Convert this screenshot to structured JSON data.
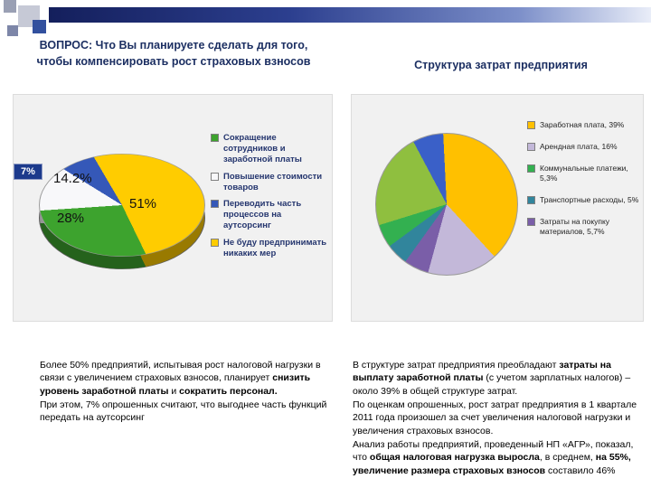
{
  "chart_data": [
    {
      "type": "pie",
      "style": "3d",
      "title": "ВОПРОС: Что Вы планируете сделать для того, чтобы компенсировать рост страховых взносов",
      "legend_position": "right",
      "start_angle": -20,
      "slices": [
        {
          "label": "Не буду предпринимать никаких мер",
          "value": 51,
          "display": "51%",
          "color": "#FFCC00"
        },
        {
          "label": "Сокращение сотрудников и заработной платы",
          "value": 28,
          "display": "28%",
          "color": "#3DA32E"
        },
        {
          "label": "Повышение стоимости товаров",
          "value": 14.2,
          "display": "14.2%",
          "color": "#F8F8FA"
        },
        {
          "label": "Переводить часть процессов на аутсорсинг",
          "value": 7,
          "display": "7%",
          "color": "#3558B8"
        }
      ],
      "legend": [
        {
          "label": "Сокращение сотрудников и заработной платы",
          "color": "#3DA32E"
        },
        {
          "label": "Повышение стоимости товаров",
          "color": "#F8F8FA"
        },
        {
          "label": "Переводить часть процессов на аутсорсинг",
          "color": "#3558B8"
        },
        {
          "label": "Не буду предпринимать никаких мер",
          "color": "#FFCC00"
        }
      ]
    },
    {
      "type": "pie",
      "style": "flat",
      "title": "Структура затрат предприятия",
      "legend_position": "right",
      "start_angle": -28,
      "slices": [
        {
          "label": "",
          "value": 7,
          "display": "",
          "color": "#3A60C8"
        },
        {
          "label": "Заработная плата",
          "value": 39,
          "display": "",
          "color": "#FFC000"
        },
        {
          "label": "Арендная плата",
          "value": 16,
          "display": "",
          "color": "#C3B8D9"
        },
        {
          "label": "Затраты на покупку материалов",
          "value": 5.7,
          "display": "",
          "color": "#7A5EA8"
        },
        {
          "label": "Транспортные расходы",
          "value": 5,
          "display": "",
          "color": "#31859C"
        },
        {
          "label": "Коммунальные платежи",
          "value": 5.3,
          "display": "",
          "color": "#33B050"
        },
        {
          "label": "",
          "value": 22,
          "display": "",
          "color": "#8FBF3F"
        }
      ],
      "legend": [
        {
          "label": "Заработная плата, 39%",
          "color": "#FFC000"
        },
        {
          "label": "Арендная плата, 16%",
          "color": "#C3B8D9"
        },
        {
          "label": "Коммунальные платежи, 5,3%",
          "color": "#33B050"
        },
        {
          "label": "Транспортные расходы, 5%",
          "color": "#31859C"
        },
        {
          "label": "Затраты на покупку материалов, 5,7%",
          "color": "#7A5EA8"
        }
      ]
    }
  ],
  "notes": {
    "left": {
      "segments": [
        {
          "t": "Более 50% предприятий, испытывая рост налоговой нагрузки в связи с увеличением страховых взносов, планирует "
        },
        {
          "t": "снизить уровень заработной платы",
          "b": true
        },
        {
          "t": " и "
        },
        {
          "t": "сократить персонал.",
          "b": true
        },
        {
          "t": "\nПри этом, 7% опрошенных считают, что выгоднее часть функций передать на аутсорсинг"
        }
      ]
    },
    "right": {
      "segments": [
        {
          "t": "В структуре затрат предприятия преобладают "
        },
        {
          "t": "затраты на выплату заработной платы",
          "b": true
        },
        {
          "t": " (с учетом зарплатных налогов) – около 39% в общей структуре затрат.\nПо оценкам опрошенных, рост затрат предприятия в 1 квартале 2011 года произошел за счет увеличения налоговой нагрузки и увеличения страховых взносов.\nАнализ работы предприятий, проведенный НП «АГР», показал, что "
        },
        {
          "t": "общая налоговая нагрузка выросла",
          "b": true
        },
        {
          "t": ", в среднем, "
        },
        {
          "t": "на 55%, увеличение размера страховых взносов",
          "b": true
        },
        {
          "t": " составило 46%"
        }
      ]
    }
  },
  "colors": {
    "title_text": "#1c2f62",
    "panel_background": "#f1f1f1",
    "callout_background": "#1c3a8c",
    "header_bar_start": "#141f5c",
    "header_bar_end": "#e9edf8"
  }
}
